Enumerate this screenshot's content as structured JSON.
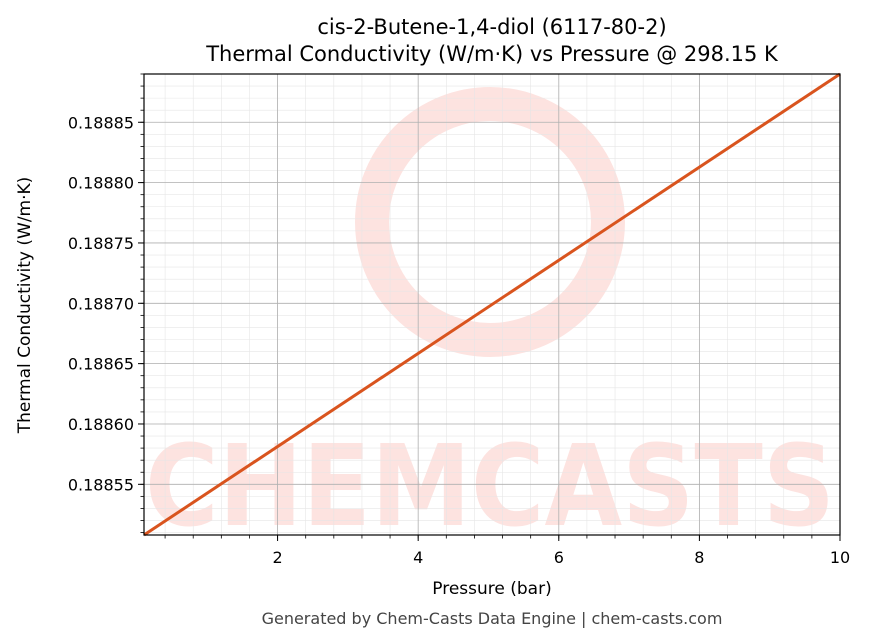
{
  "chart_data": {
    "type": "line",
    "title": "cis-2-Butene-1,4-diol (6117-80-2)",
    "subtitle": "Thermal Conductivity (W/m·K) vs Pressure @ 298.15 K",
    "xlabel": "Pressure (bar)",
    "ylabel": "Thermal Conductivity (W/m·K)",
    "xlim": [
      0.1,
      10
    ],
    "ylim": [
      0.188508,
      0.18889
    ],
    "xticks": [
      2,
      4,
      6,
      8,
      10
    ],
    "xtick_labels": [
      "2",
      "4",
      "6",
      "8",
      "10"
    ],
    "yticks": [
      0.18855,
      0.1886,
      0.18865,
      0.1887,
      0.18875,
      0.1888,
      0.18885
    ],
    "ytick_labels": [
      "0.18855",
      "0.18860",
      "0.18865",
      "0.18870",
      "0.18875",
      "0.18880",
      "0.18885"
    ],
    "grid": true,
    "series": [
      {
        "x": [
          0.1,
          10
        ],
        "y": [
          0.188508,
          0.18889
        ],
        "color": "#d9541e"
      }
    ]
  },
  "watermark": {
    "text": "CHEMCASTS",
    "color": "#fde3e0"
  },
  "footer": "Generated by Chem-Casts Data Engine | chem-casts.com"
}
